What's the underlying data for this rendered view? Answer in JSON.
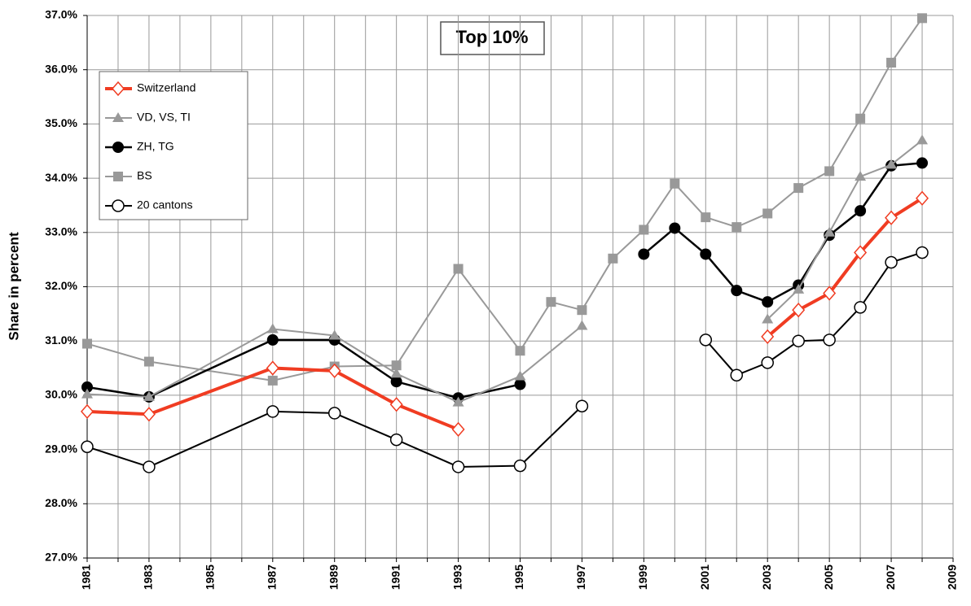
{
  "chart_data": {
    "type": "line",
    "title": "Top 10%",
    "y_label": "Share in percent",
    "xlim": [
      1981,
      2009
    ],
    "xticks": [
      1981,
      1983,
      1985,
      1987,
      1989,
      1991,
      1993,
      1995,
      1997,
      1999,
      2001,
      2003,
      2005,
      2007,
      2009
    ],
    "x_minor_ticks": [
      1982,
      1984,
      1986,
      1988,
      1990,
      1992,
      1994,
      1996,
      1998,
      2000,
      2002,
      2004,
      2006,
      2008
    ],
    "ylim": [
      27,
      37
    ],
    "yticks": [
      {
        "value": 27,
        "label": "27.0%"
      },
      {
        "value": 28,
        "label": "28.0%"
      },
      {
        "value": 29,
        "label": "29.0%"
      },
      {
        "value": 30,
        "label": "30.0%"
      },
      {
        "value": 31,
        "label": "31.0%"
      },
      {
        "value": 32,
        "label": "32.0%"
      },
      {
        "value": 33,
        "label": "33.0%"
      },
      {
        "value": 34,
        "label": "34.0%"
      },
      {
        "value": 35,
        "label": "35.0%"
      },
      {
        "value": 36,
        "label": "36.0%"
      },
      {
        "value": 37,
        "label": "37.0%"
      }
    ],
    "grid": true,
    "legend": "upper-left",
    "series": [
      {
        "name": "Switzerland",
        "color": "#f03c22",
        "marker": "diamond-open",
        "line_width": 4,
        "x": [
          1981,
          1983,
          1987,
          1989,
          1991,
          1993,
          1997,
          2003,
          2004,
          2005,
          2006,
          2007,
          2008
        ],
        "values": [
          29.7,
          29.65,
          30.5,
          30.45,
          29.83,
          29.37,
          null,
          31.08,
          31.57,
          31.88,
          32.63,
          33.27,
          33.63
        ]
      },
      {
        "name": "VD, VS, TI",
        "color": "#999999",
        "marker": "triangle",
        "line_width": 2,
        "x": [
          1981,
          1983,
          1987,
          1989,
          1991,
          1993,
          1995,
          1997,
          2001,
          2003,
          2004,
          2005,
          2006,
          2007,
          2008
        ],
        "values": [
          30.02,
          29.97,
          31.22,
          31.1,
          30.4,
          29.87,
          30.35,
          31.28,
          null,
          31.4,
          31.95,
          33.0,
          34.03,
          34.25,
          34.7
        ]
      },
      {
        "name": "ZH, TG",
        "color": "#000000",
        "marker": "circle",
        "line_width": 2.5,
        "x": [
          1981,
          1983,
          1987,
          1989,
          1991,
          1993,
          1995,
          1997,
          1999,
          2000,
          2001,
          2002,
          2003,
          2004,
          2005,
          2006,
          2007,
          2008
        ],
        "values": [
          30.15,
          29.97,
          31.02,
          31.02,
          30.25,
          29.95,
          30.2,
          null,
          32.6,
          33.08,
          32.6,
          31.93,
          31.72,
          32.03,
          32.95,
          33.4,
          34.23,
          34.28
        ]
      },
      {
        "name": "BS",
        "color": "#999999",
        "marker": "square",
        "line_width": 2,
        "x": [
          1981,
          1983,
          1987,
          1989,
          1991,
          1993,
          1995,
          1996,
          1997,
          1998,
          1999,
          2000,
          2001,
          2002,
          2003,
          2004,
          2005,
          2006,
          2007,
          2008
        ],
        "values": [
          30.95,
          30.62,
          30.27,
          30.53,
          30.55,
          32.33,
          30.82,
          31.72,
          31.57,
          32.52,
          33.05,
          33.9,
          33.28,
          33.1,
          33.35,
          33.82,
          34.13,
          35.1,
          36.13,
          36.95
        ]
      },
      {
        "name": "20 cantons",
        "color": "#000000",
        "marker": "circle-open",
        "line_width": 2,
        "x": [
          1981,
          1983,
          1987,
          1989,
          1991,
          1993,
          1995,
          1997,
          1999,
          2001,
          2002,
          2003,
          2004,
          2005,
          2006,
          2007,
          2008
        ],
        "values": [
          29.05,
          28.68,
          29.7,
          29.67,
          29.18,
          28.68,
          28.7,
          29.8,
          null,
          31.02,
          30.37,
          30.6,
          31.0,
          31.02,
          31.62,
          32.45,
          32.63
        ]
      }
    ]
  }
}
